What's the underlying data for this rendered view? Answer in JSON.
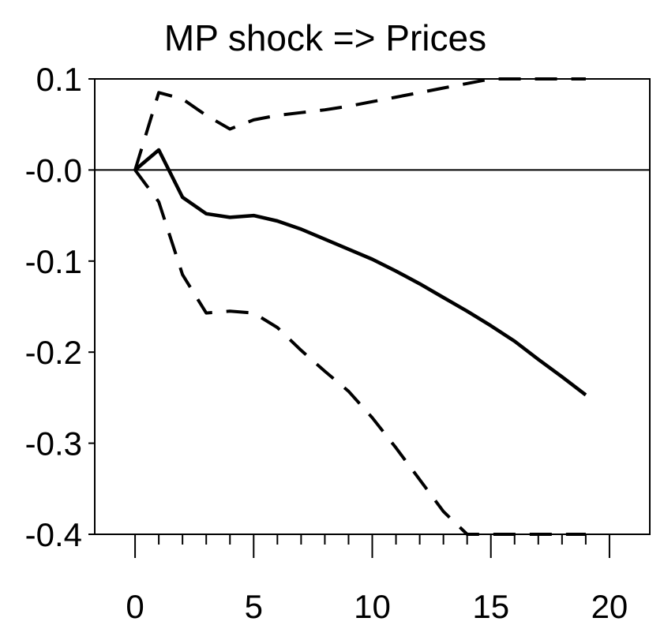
{
  "chart_data": {
    "type": "line",
    "title": "MP shock => Prices",
    "xlabel": "",
    "ylabel": "",
    "xlim": [
      -1.7,
      21.7
    ],
    "ylim": [
      -0.4,
      0.1
    ],
    "x_ticks": [
      0,
      5,
      10,
      15,
      20
    ],
    "x_tick_labels": [
      "0",
      "5",
      "10",
      "15",
      "20"
    ],
    "x_minor_ticks": [
      1,
      2,
      3,
      4,
      6,
      7,
      8,
      9,
      11,
      12,
      13,
      14,
      16,
      17,
      18,
      19
    ],
    "y_ticks": [
      0.1,
      0.0,
      -0.1,
      -0.2,
      -0.3,
      -0.4
    ],
    "y_tick_labels": [
      "0.1",
      "-0.0",
      "-0.1",
      "-0.2",
      "-0.3",
      "-0.4"
    ],
    "zero_line": true,
    "grid": false,
    "colors": {
      "line": "#000000",
      "background": "#ffffff"
    },
    "series": [
      {
        "style": "solid",
        "x": [
          0,
          1,
          2,
          3,
          4,
          5,
          6,
          7,
          8,
          9,
          10,
          11,
          12,
          13,
          14,
          15,
          16,
          17,
          18,
          19
        ],
        "y": [
          0.0,
          0.022,
          -0.03,
          -0.048,
          -0.052,
          -0.05,
          -0.056,
          -0.065,
          -0.076,
          -0.087,
          -0.098,
          -0.111,
          -0.125,
          -0.14,
          -0.155,
          -0.171,
          -0.188,
          -0.208,
          -0.227,
          -0.247
        ]
      },
      {
        "style": "dashed",
        "x": [
          0,
          1,
          2,
          3,
          4,
          5,
          6,
          7,
          8,
          9,
          10,
          11,
          12,
          13,
          14,
          15,
          16,
          17,
          18,
          19
        ],
        "y": [
          0.0,
          0.085,
          0.078,
          0.06,
          0.045,
          0.055,
          0.06,
          0.063,
          0.066,
          0.07,
          0.075,
          0.08,
          0.085,
          0.09,
          0.095,
          0.1,
          0.1,
          0.1,
          0.1,
          0.1
        ]
      },
      {
        "style": "dashed",
        "x": [
          0,
          1,
          2,
          3,
          4,
          5,
          6,
          7,
          8,
          9,
          10,
          11,
          12,
          13,
          14,
          15,
          16,
          17,
          18,
          19
        ],
        "y": [
          0.0,
          -0.035,
          -0.115,
          -0.157,
          -0.155,
          -0.157,
          -0.173,
          -0.198,
          -0.221,
          -0.243,
          -0.272,
          -0.305,
          -0.34,
          -0.375,
          -0.4,
          -0.4,
          -0.4,
          -0.4,
          -0.4,
          -0.4
        ]
      }
    ]
  }
}
